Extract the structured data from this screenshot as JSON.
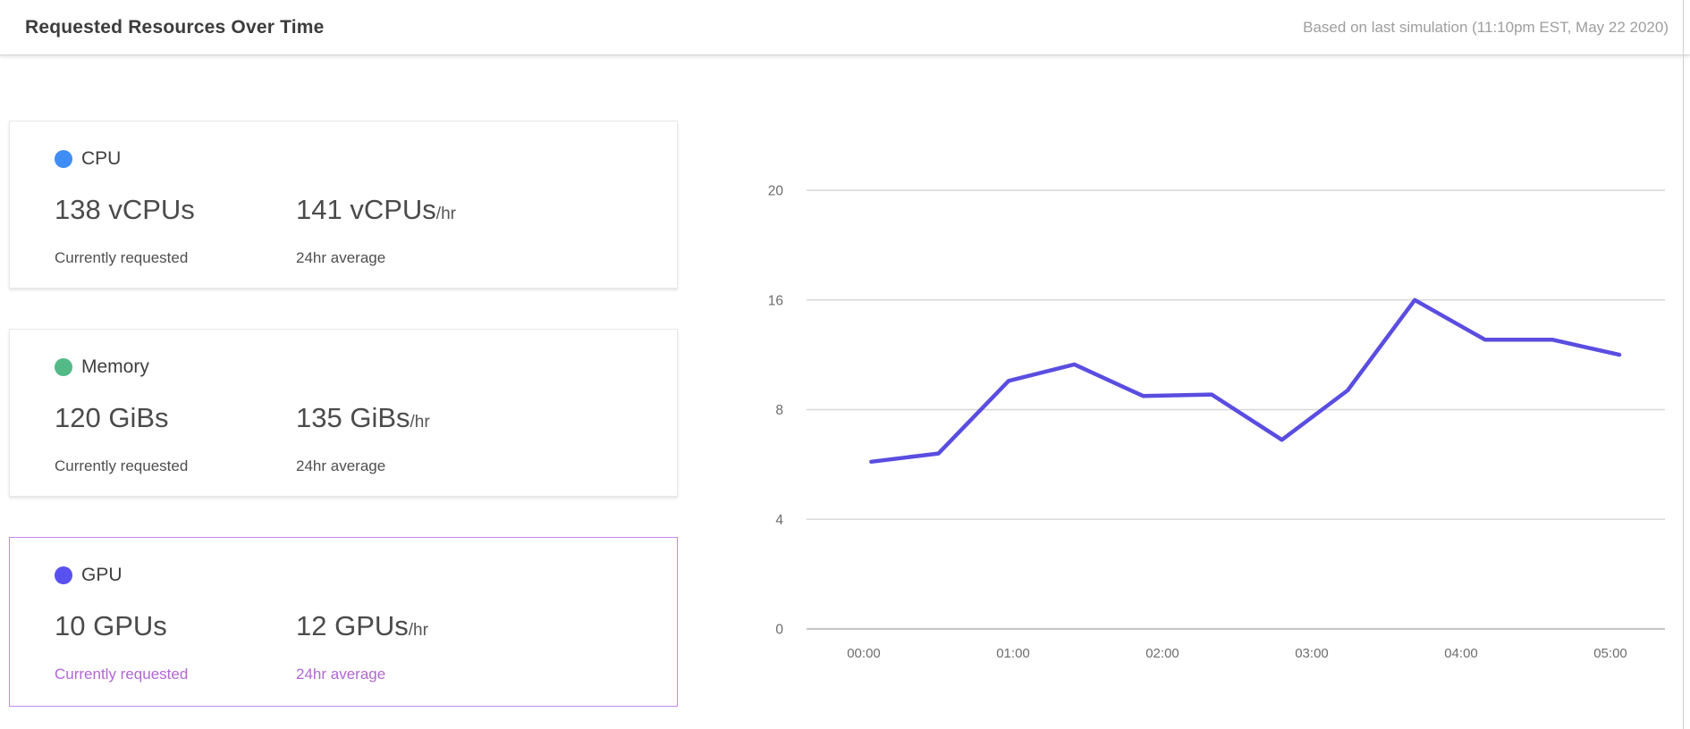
{
  "header": {
    "title": "Requested Resources Over Time",
    "timestamp": "Based on last simulation (11:10pm EST, May 22 2020)"
  },
  "cards": [
    {
      "id": "cpu",
      "label": "CPU",
      "dot_color": "#3f8df5",
      "selected": false,
      "current": {
        "value": "138 vCPUs",
        "suffix": "",
        "caption": "Currently requested"
      },
      "average": {
        "value": "141 vCPUs",
        "suffix": "/hr",
        "caption": "24hr average"
      }
    },
    {
      "id": "memory",
      "label": "Memory",
      "dot_color": "#53ba87",
      "selected": false,
      "current": {
        "value": "120 GiBs",
        "suffix": "",
        "caption": "Currently requested"
      },
      "average": {
        "value": "135 GiBs",
        "suffix": "/hr",
        "caption": "24hr average"
      }
    },
    {
      "id": "gpu",
      "label": "GPU",
      "dot_color": "#5950f0",
      "selected": true,
      "current": {
        "value": "10 GPUs",
        "suffix": "",
        "caption": "Currently requested"
      },
      "average": {
        "value": "12 GPUs",
        "suffix": "/hr",
        "caption": "24hr average"
      }
    }
  ],
  "chart_data": {
    "type": "line",
    "title": "Requested Resources Over Time",
    "xlabel": "",
    "ylabel": "",
    "x_ticks": [
      "00:00",
      "01:00",
      "02:00",
      "03:00",
      "04:00",
      "05:00"
    ],
    "y_ticks_top_to_bottom": [
      20,
      16,
      8,
      4,
      0
    ],
    "y_tick_spacing": "uniform-pixel (irregular values)",
    "grid": true,
    "legend_position": "none",
    "series": [
      {
        "name": "GPU requested",
        "color": "#5a4de0",
        "x_hours": [
          0.05,
          0.5,
          0.97,
          1.41,
          1.87,
          2.33,
          2.8,
          3.24,
          3.69,
          4.16,
          4.61,
          5.06
        ],
        "values": [
          6.1,
          6.4,
          10.1,
          11.3,
          9.0,
          9.1,
          6.9,
          9.4,
          16.0,
          13.1,
          13.1,
          12.0
        ]
      }
    ]
  },
  "colors": {
    "selected_card_border": "#c389ef",
    "selected_caption_text": "#b267d4",
    "grid_line": "#d8d8d8",
    "axis_line": "#c8c8c8",
    "tick_label": "#6d6d6d",
    "title_text": "#3c3c3c",
    "timestamp_text": "#9e9e9e"
  }
}
